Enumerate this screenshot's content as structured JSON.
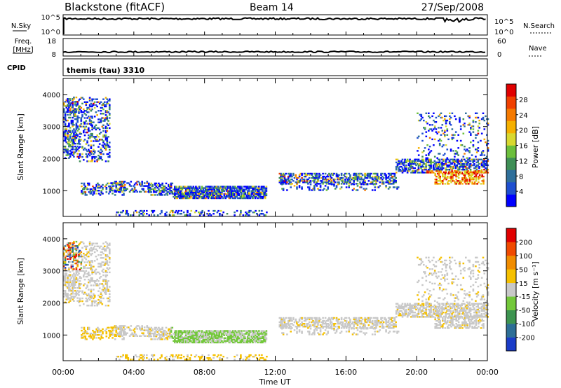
{
  "header": {
    "station": "Blackstone (fitACF)",
    "beam": "Beam 14",
    "date": "27/Sep/2008"
  },
  "panel_labels": {
    "nsky": "N.Sky",
    "nsearch": "N.Search",
    "freq": "Freq.",
    "freq_unit": "[MHz]",
    "nave": "Nave",
    "cpid_label": "CPID",
    "cpid_value": "themis (tau) 3310"
  },
  "chart_data": [
    {
      "type": "line",
      "name": "noise",
      "yticks_left": [
        "10^5",
        "10^0"
      ],
      "yticks_right": [
        "10^5",
        "10^0"
      ]
    },
    {
      "type": "line",
      "name": "frequency-nave",
      "yticks_left": [
        "18",
        "8"
      ],
      "yticks_right": [
        "60",
        "0"
      ]
    },
    {
      "type": "heatmap",
      "name": "power",
      "ylabel": "Slant Range [km]",
      "xlabel": "",
      "ylim": [
        200,
        4500
      ],
      "yticks": [
        "4000",
        "3000",
        "2000",
        "1000"
      ],
      "colorbar_label": "Power [dB]",
      "colorbar_ticks": [
        "28",
        "24",
        "20",
        "16",
        "12",
        "8",
        "4"
      ],
      "colorbar_colors": [
        "#0000ff",
        "#1e4fd0",
        "#2f6f9a",
        "#3f8f56",
        "#6cbf3c",
        "#d8d830",
        "#f5b000",
        "#f57a00",
        "#f04000",
        "#e00000"
      ]
    },
    {
      "type": "heatmap",
      "name": "velocity",
      "ylabel": "Slant Range [km]",
      "xlabel": "Time UT",
      "ylim": [
        200,
        4500
      ],
      "yticks": [
        "4000",
        "3000",
        "2000",
        "1000"
      ],
      "xticks": [
        "00:00",
        "04:00",
        "08:00",
        "12:00",
        "16:00",
        "20:00",
        "00:00"
      ],
      "colorbar_label": "Velocity [m s⁻¹]",
      "colorbar_ticks": [
        "200",
        "100",
        "50",
        "15",
        "-15",
        "-50",
        "-100",
        "-200"
      ],
      "colorbar_colors": [
        "#1a3cc8",
        "#2d6e96",
        "#3d9450",
        "#73c83a",
        "#c8c8c8",
        "#f5c000",
        "#f08c00",
        "#f04a00",
        "#e00000"
      ]
    }
  ]
}
